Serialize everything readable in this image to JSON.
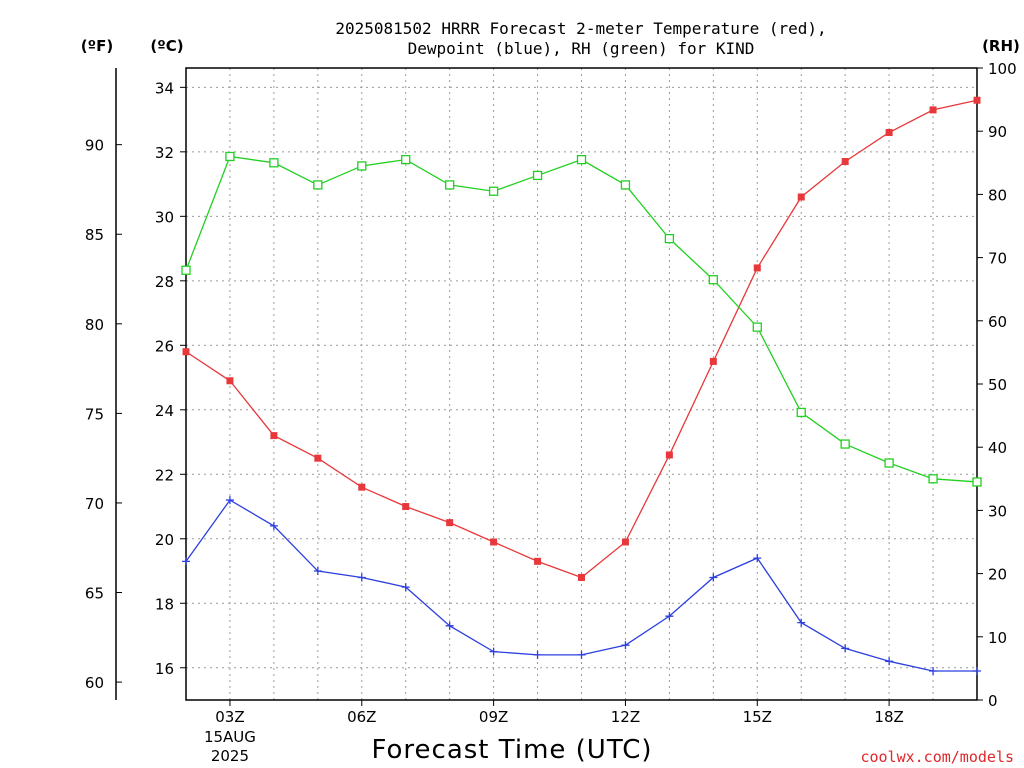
{
  "chart_data": {
    "type": "line",
    "title_line1": "2025081502 HRRR Forecast 2-meter Temperature (red),",
    "title_line2": "Dewpoint (blue), RH (green) for KIND",
    "units": {
      "fahrenheit": "(ºF)",
      "celsius": "(ºC)",
      "rh": "(RH)"
    },
    "xlabel": "Forecast Time (UTC)",
    "credit": "coolwx.com/models",
    "x_hours": [
      2,
      3,
      4,
      5,
      6,
      7,
      8,
      9,
      10,
      11,
      12,
      13,
      14,
      15,
      16,
      17,
      18,
      19,
      20
    ],
    "x_range": [
      2,
      20
    ],
    "x_ticks": [
      {
        "hour": 3,
        "label": "03Z",
        "sub1": "15AUG",
        "sub2": "2025"
      },
      {
        "hour": 6,
        "label": "06Z"
      },
      {
        "hour": 9,
        "label": "09Z"
      },
      {
        "hour": 12,
        "label": "12Z"
      },
      {
        "hour": 15,
        "label": "15Z"
      },
      {
        "hour": 18,
        "label": "18Z"
      }
    ],
    "celsius_range": [
      15.0,
      34.6
    ],
    "celsius_ticks": [
      "16",
      "18",
      "20",
      "22",
      "24",
      "26",
      "28",
      "30",
      "32",
      "34"
    ],
    "fahrenheit_ticks": [
      "60",
      "65",
      "70",
      "75",
      "80",
      "85",
      "90"
    ],
    "rh_range": [
      0,
      100
    ],
    "rh_ticks": [
      "0",
      "10",
      "20",
      "30",
      "40",
      "50",
      "60",
      "70",
      "80",
      "90",
      "100"
    ],
    "grid": true,
    "series": [
      {
        "name": "Temperature",
        "axis": "celsius",
        "color": "#e8383c",
        "marker": "filled-square",
        "values": [
          25.8,
          24.9,
          23.2,
          22.5,
          21.6,
          21.0,
          20.5,
          19.9,
          19.3,
          18.8,
          19.9,
          22.6,
          25.5,
          28.4,
          30.6,
          31.7,
          32.6,
          33.3,
          33.6
        ]
      },
      {
        "name": "Dewpoint",
        "axis": "celsius",
        "color": "#2c3fe0",
        "marker": "plus",
        "values": [
          19.3,
          21.2,
          20.4,
          19.0,
          18.8,
          18.5,
          17.3,
          16.5,
          16.4,
          16.4,
          16.7,
          17.6,
          18.8,
          19.4,
          17.4,
          16.6,
          16.2,
          15.9,
          15.9
        ]
      },
      {
        "name": "RH",
        "axis": "rh",
        "color": "#22d022",
        "marker": "open-square",
        "values": [
          68,
          86,
          85,
          81.5,
          84.5,
          85.5,
          81.5,
          80.5,
          83,
          85.5,
          81.5,
          73,
          66.5,
          59,
          45.5,
          40.5,
          37.5,
          35,
          34.5
        ]
      }
    ]
  }
}
